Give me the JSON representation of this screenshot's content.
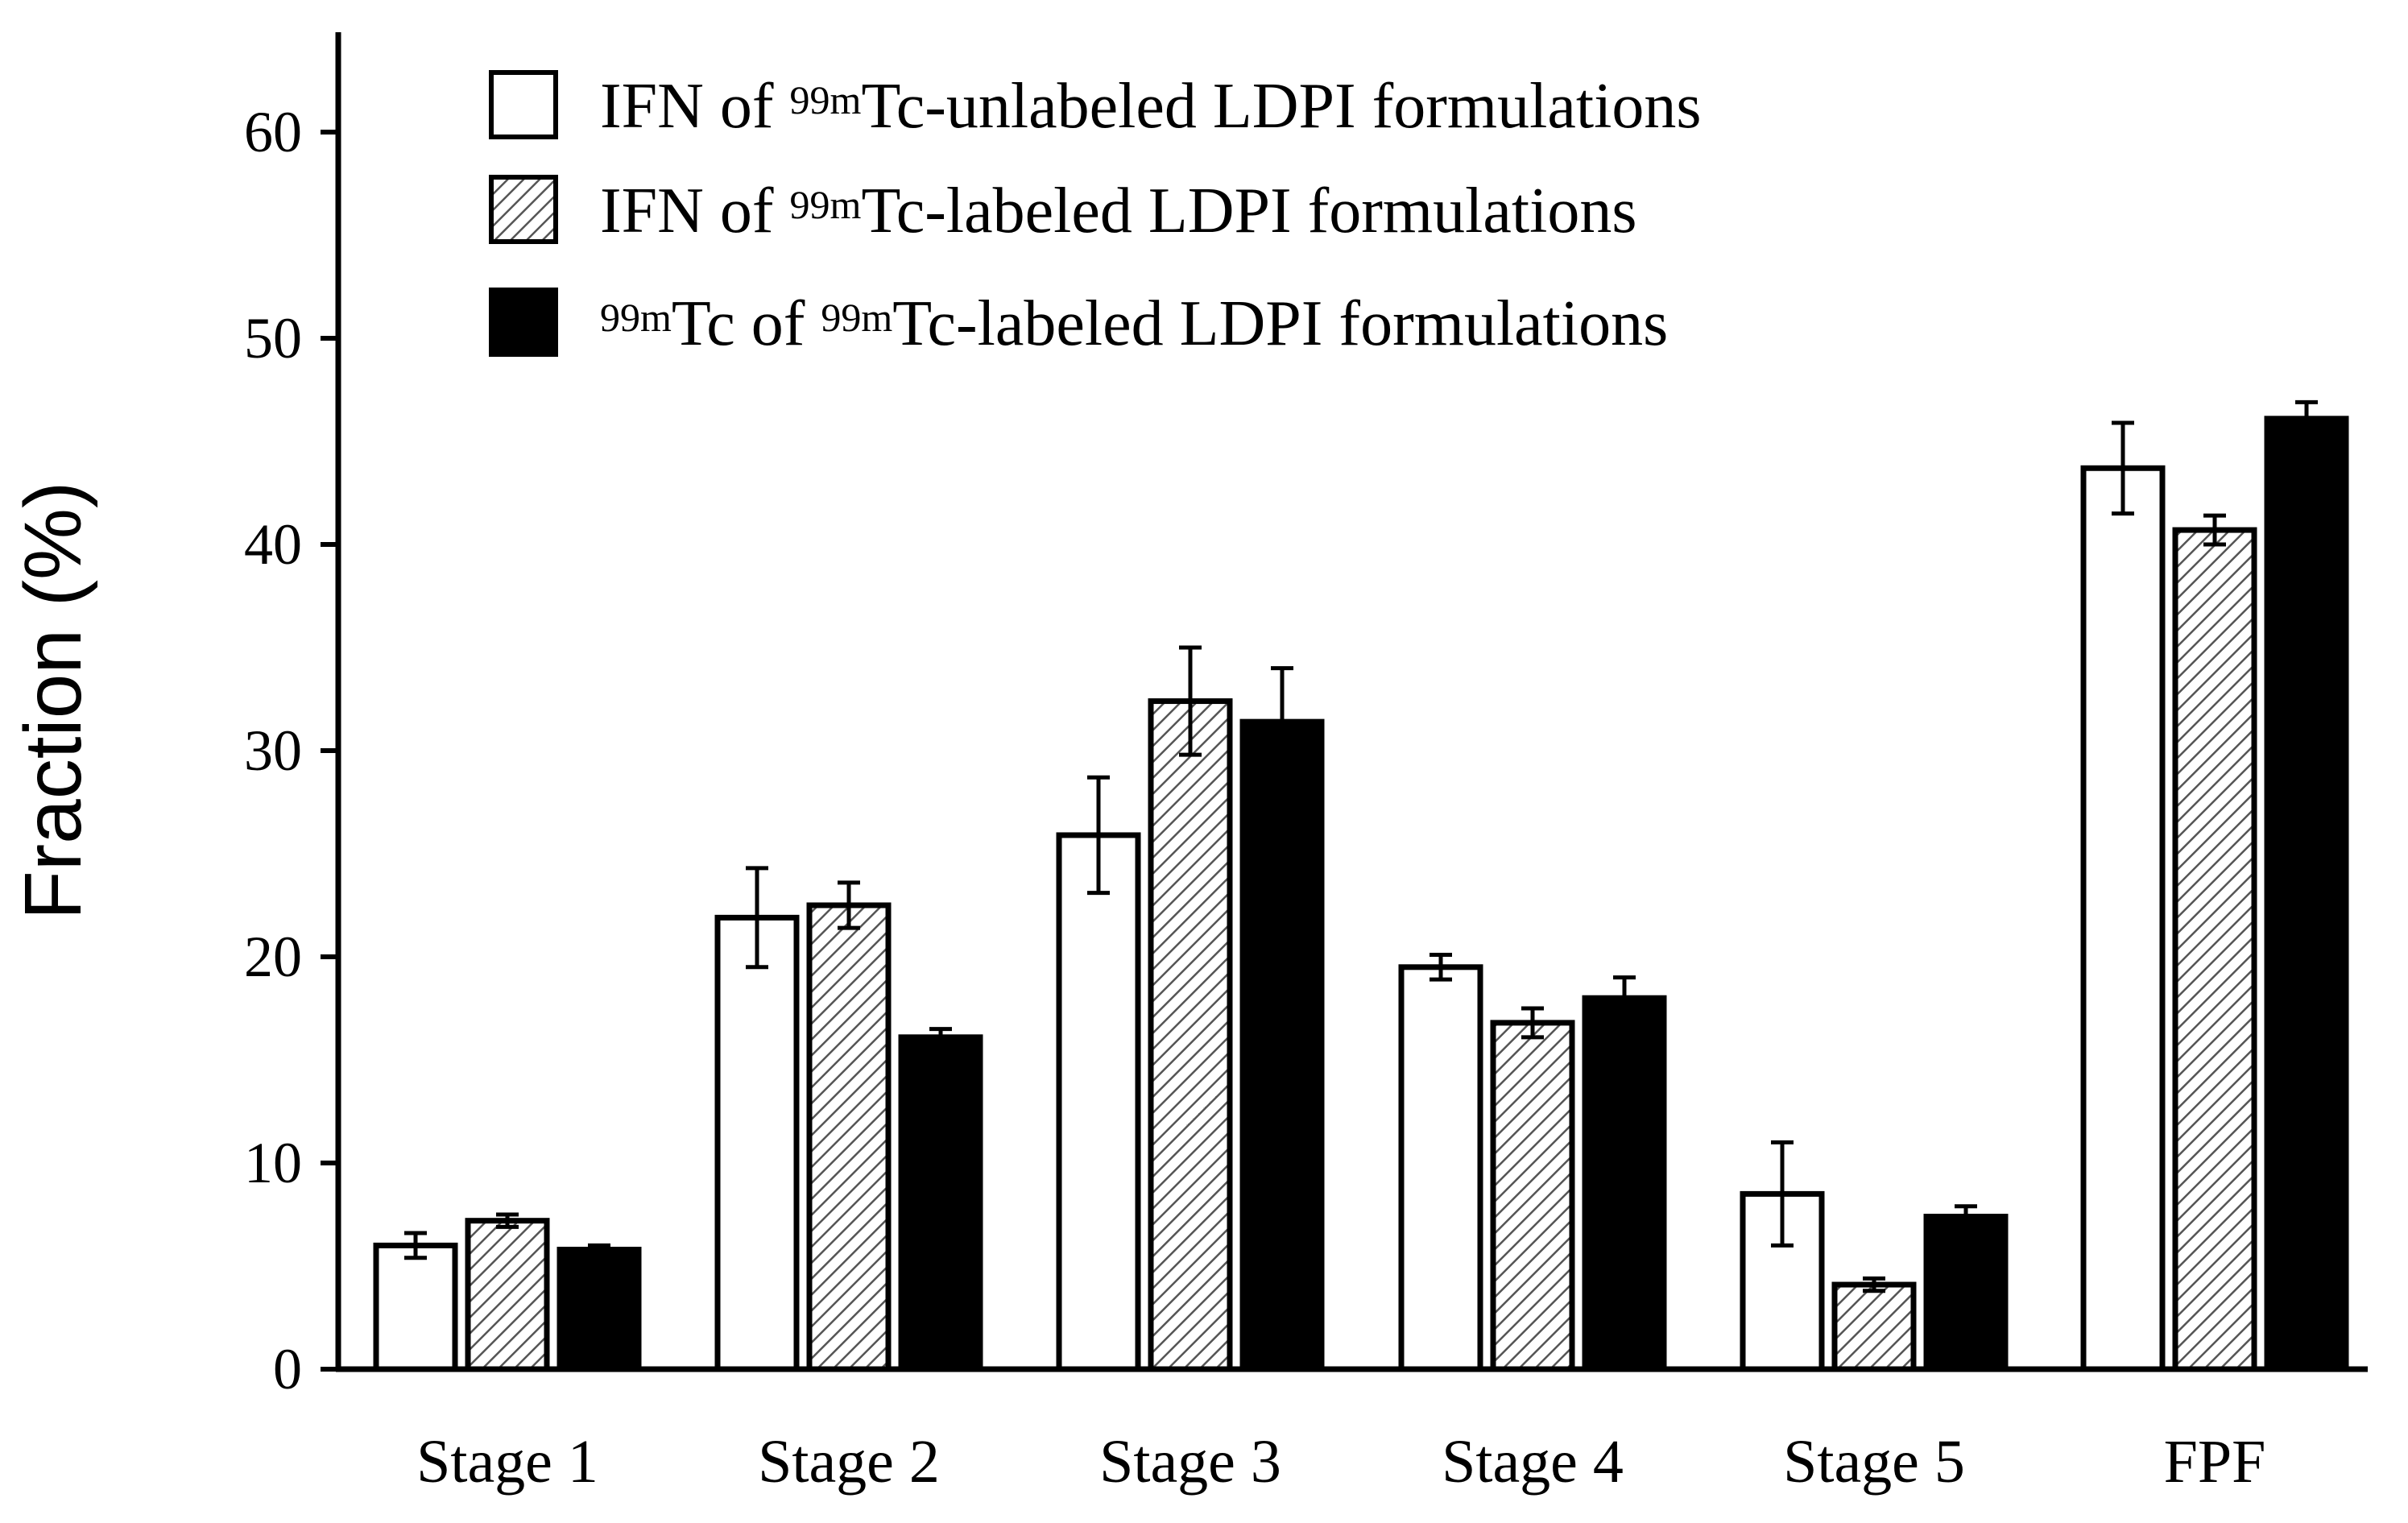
{
  "chart_data": {
    "type": "bar",
    "categories": [
      "Stage 1",
      "Stage 2",
      "Stage 3",
      "Stage 4",
      "Stage 5",
      "FPF"
    ],
    "ylabel": "Fraction (%)",
    "xlabel": "",
    "ylim": [
      0,
      65
    ],
    "yticks": [
      0,
      10,
      20,
      30,
      40,
      50,
      60
    ],
    "grid": false,
    "legend_position": "top-left",
    "series": [
      {
        "name": "IFN of 99mTc-unlabeled LDPI formulations",
        "legend_parts": {
          "pre": "IFN of ",
          "sup1": "",
          "mid": "",
          "sup2": "99m",
          "post": "Tc-unlabeled LDPI formulations"
        },
        "style": "open",
        "values": [
          6.0,
          21.9,
          25.9,
          19.5,
          8.5,
          43.7
        ],
        "errors": [
          0.6,
          2.4,
          2.8,
          0.6,
          2.5,
          2.2
        ]
      },
      {
        "name": "IFN of 99mTc-labeled LDPI formulations",
        "legend_parts": {
          "pre": "IFN of ",
          "sup1": "",
          "mid": "",
          "sup2": "99m",
          "post": "Tc-labeled LDPI formulations"
        },
        "style": "hatched",
        "values": [
          7.2,
          22.5,
          32.4,
          16.8,
          4.1,
          40.7
        ],
        "errors": [
          0.3,
          1.1,
          2.6,
          0.7,
          0.3,
          0.7
        ]
      },
      {
        "name": "99mTc of 99mTc-labeled LDPI formulations",
        "legend_parts": {
          "pre": "",
          "sup1": "99m",
          "mid": "Tc of ",
          "sup2": "99m",
          "post": "Tc-labeled LDPI formulations"
        },
        "style": "solid",
        "values": [
          5.8,
          16.1,
          31.4,
          18.0,
          7.4,
          46.1
        ],
        "errors": [
          0.2,
          0.4,
          2.6,
          1.0,
          0.5,
          0.8
        ]
      }
    ]
  }
}
